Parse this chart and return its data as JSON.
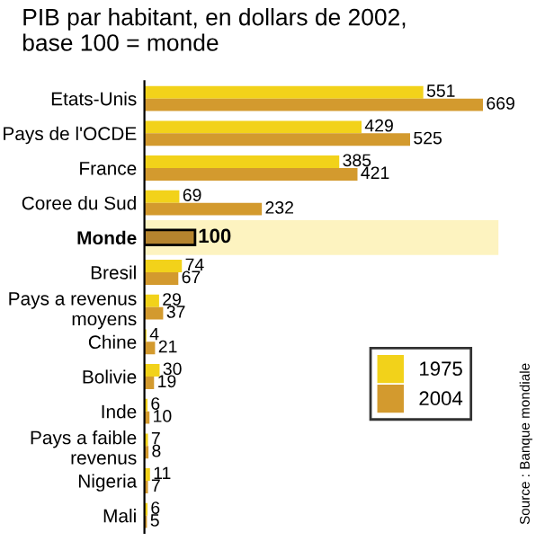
{
  "chart_data": {
    "type": "bar",
    "orientation": "horizontal",
    "title": "PIB par habitant, en dollars de 2002,\nbase 100 = monde",
    "categories": [
      "Etats-Unis",
      "Pays de l'OCDE",
      "France",
      "Coree du Sud",
      "Monde",
      "Bresil",
      "Pays a revenus\nmoyens",
      "Chine",
      "Bolivie",
      "Inde",
      "Pays a faible\nrevenus",
      "Nigeria",
      "Mali"
    ],
    "series": [
      {
        "name": "1975",
        "color": "#f2d21a",
        "values": [
          551,
          429,
          385,
          69,
          null,
          74,
          29,
          4,
          30,
          6,
          7,
          11,
          6
        ]
      },
      {
        "name": "2004",
        "color": "#d39a2e",
        "colors": [
          "#d39a2e",
          "#d39a2e",
          "#d39a2e",
          "#d39a2e",
          "#b5842e",
          "#d39a2e",
          "#d39a2e",
          "#d39a2e",
          "#d39a2e",
          "#d39a2e",
          "#d39a2e",
          "#d39a2e",
          "#d39a2e"
        ],
        "values": [
          669,
          525,
          421,
          232,
          100,
          67,
          37,
          21,
          19,
          10,
          8,
          7,
          5
        ]
      }
    ],
    "xlim": [
      0,
      700
    ],
    "tick_labels": "y",
    "data_labels": true,
    "legend": "right",
    "grid": false,
    "bands": [
      {
        "axis": "y",
        "from": "Monde",
        "to": "Monde",
        "color": "#fdf3c0"
      }
    ],
    "annotations": [
      "Source : Banque mondiale"
    ]
  }
}
